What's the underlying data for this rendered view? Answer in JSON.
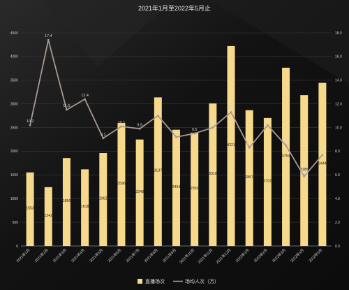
{
  "chart_data": {
    "type": "bar",
    "title": "2021年1月至2022年5月止",
    "categories": [
      "2021年1月",
      "2021年2月",
      "2021年3月",
      "2021年4月",
      "2021年5月",
      "2021年6月",
      "2021年7月",
      "2021年8月",
      "2021年9月",
      "2021年10月",
      "2021年11月",
      "2021年12月",
      "2022年1月",
      "2022年2月",
      "2022年3月",
      "2022年4月",
      "2022年5月"
    ],
    "series": [
      {
        "name": "直播场次",
        "type": "bar",
        "axis": "left",
        "color": "#f7d98b",
        "values": [
          1553,
          1242,
          1856,
          1618,
          1962,
          2596,
          2248,
          3137,
          2454,
          2392,
          3010,
          4221,
          2867,
          2702,
          3764,
          3185,
          3444
        ],
        "value_labels": [
          "1553",
          "1242",
          "1856",
          "1618",
          "1962",
          "2596",
          "2248",
          "3137",
          "2454",
          "2392",
          "3010",
          "4221",
          "2867",
          "2702",
          "3764",
          "3185",
          "3444"
        ]
      },
      {
        "name": "场均人次（万）",
        "type": "line",
        "axis": "right",
        "color": "#a89890",
        "values": [
          10.2,
          17.4,
          11.5,
          12.4,
          9.1,
          10.1,
          9.9,
          11.0,
          9.2,
          9.5,
          10.0,
          11.3,
          8.3,
          10.2,
          8.5,
          5.88,
          7.7
        ],
        "value_labels": [
          "10.2",
          "17.4",
          "11.5",
          "12.4",
          "9.1",
          "10.1",
          "9.9",
          "11.0",
          "9.2",
          "9.5",
          "10.0",
          "11.3",
          "8.3",
          "10.2",
          "8.5",
          "5.88",
          "7.7"
        ]
      }
    ],
    "y_left": {
      "min": 0,
      "max": 4500,
      "step": 500,
      "ticks": [
        "0",
        "500",
        "1000",
        "1500",
        "2000",
        "2500",
        "3000",
        "3500",
        "4000",
        "4500"
      ]
    },
    "y_right": {
      "min": 0,
      "max": 18,
      "step": 2,
      "ticks": [
        "0.0",
        "2.0",
        "4.0",
        "6.0",
        "8.0",
        "10.0",
        "12.0",
        "14.0",
        "16.0",
        "18.0"
      ]
    },
    "grid": true,
    "legend_position": "bottom-center"
  }
}
